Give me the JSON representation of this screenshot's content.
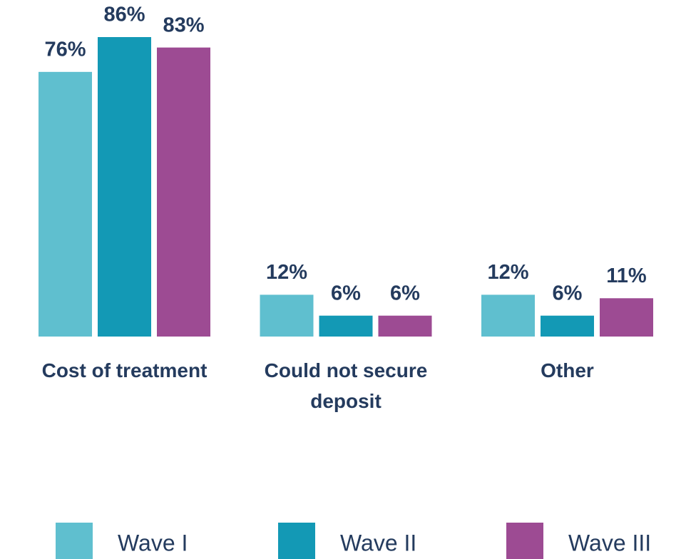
{
  "chart_data": {
    "type": "bar",
    "categories": [
      "Cost of treatment",
      "Could not secure deposit",
      "Other"
    ],
    "series": [
      {
        "name": "Wave I",
        "color": "#5fbfcf",
        "values": [
          76,
          12,
          12
        ],
        "value_labels": [
          "76%",
          "12%",
          "12%"
        ]
      },
      {
        "name": "Wave II",
        "color": "#1399b5",
        "values": [
          86,
          6,
          6
        ],
        "value_labels": [
          "86%",
          "6%",
          "6%"
        ]
      },
      {
        "name": "Wave III",
        "color": "#9d4b93",
        "values": [
          83,
          6,
          11
        ],
        "value_labels": [
          "83%",
          "6%",
          "11%"
        ]
      }
    ],
    "legend": "bottom"
  }
}
